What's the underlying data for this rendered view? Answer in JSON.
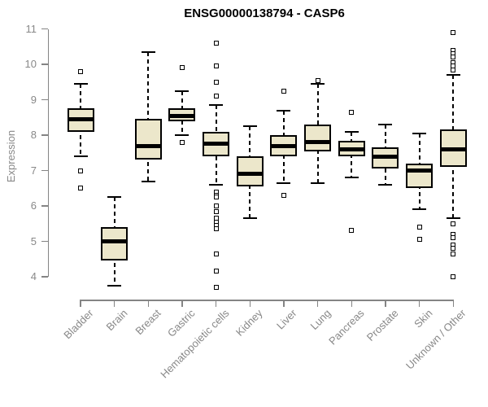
{
  "chart_data": {
    "type": "boxplot",
    "title": "ENSG00000138794 - CASP6",
    "xlabel": "",
    "ylabel": "Expression",
    "ylim": [
      4,
      11
    ],
    "yticks": [
      4,
      5,
      6,
      7,
      8,
      9,
      10,
      11
    ],
    "grid": false,
    "legend": "none",
    "categories": [
      "Bladder",
      "Brain",
      "Breast",
      "Gastric",
      "Hematopoietic cells",
      "Kidney",
      "Liver",
      "Lung",
      "Pancreas",
      "Prostate",
      "Skin",
      "Unknown / Other"
    ],
    "series": [
      {
        "category": "Bladder",
        "whisker_low": 7.4,
        "q1": 8.1,
        "median": 8.45,
        "q3": 8.75,
        "whisker_high": 9.45,
        "outliers": [
          9.8,
          7.0,
          6.5
        ]
      },
      {
        "category": "Brain",
        "whisker_low": 3.75,
        "q1": 4.45,
        "median": 5.0,
        "q3": 5.4,
        "whisker_high": 6.25,
        "outliers": []
      },
      {
        "category": "Breast",
        "whisker_low": 6.7,
        "q1": 7.3,
        "median": 7.7,
        "q3": 8.45,
        "whisker_high": 10.35,
        "outliers": []
      },
      {
        "category": "Gastric",
        "whisker_low": 8.0,
        "q1": 8.4,
        "median": 8.55,
        "q3": 8.75,
        "whisker_high": 9.25,
        "outliers": [
          9.9,
          7.8
        ]
      },
      {
        "category": "Hematopoietic cells",
        "whisker_low": 6.6,
        "q1": 7.4,
        "median": 7.75,
        "q3": 8.1,
        "whisker_high": 8.85,
        "outliers": [
          10.6,
          9.95,
          9.5,
          9.1,
          6.4,
          6.3,
          6.25,
          6.0,
          5.85,
          5.65,
          5.55,
          5.45,
          5.35,
          4.65,
          4.15,
          3.7
        ]
      },
      {
        "category": "Kidney",
        "whisker_low": 5.65,
        "q1": 6.55,
        "median": 6.9,
        "q3": 7.4,
        "whisker_high": 8.25,
        "outliers": []
      },
      {
        "category": "Liver",
        "whisker_low": 6.65,
        "q1": 7.4,
        "median": 7.7,
        "q3": 8.0,
        "whisker_high": 8.7,
        "outliers": [
          9.25,
          6.3
        ]
      },
      {
        "category": "Lung",
        "whisker_low": 6.65,
        "q1": 7.55,
        "median": 7.8,
        "q3": 8.3,
        "whisker_high": 9.45,
        "outliers": [
          9.55
        ]
      },
      {
        "category": "Pancreas",
        "whisker_low": 6.8,
        "q1": 7.4,
        "median": 7.6,
        "q3": 7.85,
        "whisker_high": 8.1,
        "outliers": [
          8.65,
          5.3
        ]
      },
      {
        "category": "Prostate",
        "whisker_low": 6.6,
        "q1": 7.05,
        "median": 7.4,
        "q3": 7.65,
        "whisker_high": 8.3,
        "outliers": []
      },
      {
        "category": "Skin",
        "whisker_low": 5.9,
        "q1": 6.5,
        "median": 7.0,
        "q3": 7.2,
        "whisker_high": 8.05,
        "outliers": [
          5.4,
          5.05
        ]
      },
      {
        "category": "Unknown / Other",
        "whisker_low": 5.65,
        "q1": 7.1,
        "median": 7.6,
        "q3": 8.15,
        "whisker_high": 9.7,
        "outliers": [
          10.9,
          10.4,
          10.3,
          10.2,
          10.05,
          9.95,
          9.85,
          5.5,
          5.2,
          5.1,
          4.9,
          4.8,
          4.65,
          4.0
        ]
      }
    ],
    "colors": {
      "box_fill": "#ECE7CB",
      "box_border": "#000000",
      "median": "#000000",
      "axis": "#848484",
      "tick_label": "#888888",
      "title": "#000000",
      "background": "#ffffff"
    }
  }
}
